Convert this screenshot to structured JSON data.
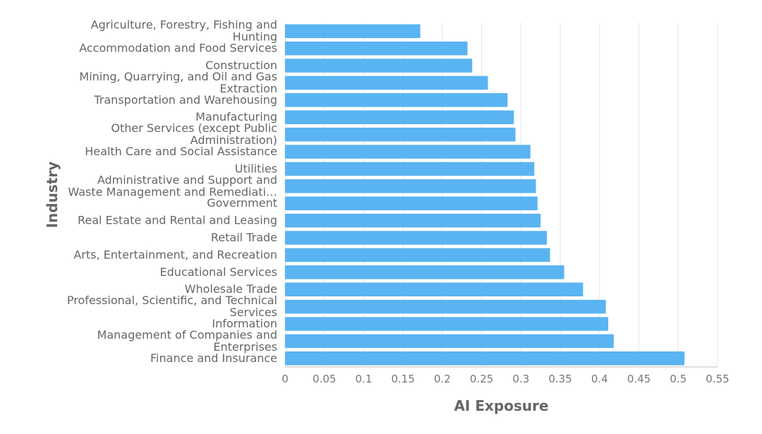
{
  "chart_data": {
    "type": "bar",
    "orientation": "horizontal",
    "xlabel": "AI Exposure",
    "ylabel": "Industry",
    "xlim": [
      0,
      0.55
    ],
    "xticks": [
      "0",
      "0.05",
      "0.1",
      "0.15",
      "0.2",
      "0.25",
      "0.3",
      "0.35",
      "0.4",
      "0.45",
      "0.5",
      "0.55"
    ],
    "grid": true,
    "bar_color": "#5ab4f2",
    "categories": [
      "Agriculture, Forestry, Fishing and Hunting",
      "Accommodation and Food Services",
      "Construction",
      "Mining, Quarrying, and Oil and Gas Extraction",
      "Transportation and Warehousing",
      "Manufacturing",
      "Other Services (except Public Administration)",
      "Health Care and Social Assistance",
      "Utilities",
      "Administrative and Support and Waste Management and Remediati…",
      "Government",
      "Real Estate and Rental and Leasing",
      "Retail Trade",
      "Arts, Entertainment, and Recreation",
      "Educational Services",
      "Wholesale Trade",
      "Professional, Scientific, and Technical Services",
      "Information",
      "Management of Companies and Enterprises",
      "Finance and Insurance"
    ],
    "category_lines": [
      [
        "Agriculture, Forestry, Fishing and",
        "Hunting"
      ],
      [
        "Accommodation and Food Services"
      ],
      [
        "Construction"
      ],
      [
        "Mining, Quarrying, and Oil and Gas",
        "Extraction"
      ],
      [
        "Transportation and Warehousing"
      ],
      [
        "Manufacturing"
      ],
      [
        "Other Services (except Public",
        "Administration)"
      ],
      [
        "Health Care and Social Assistance"
      ],
      [
        "Utilities"
      ],
      [
        "Administrative and Support and",
        "Waste Management and Remediati…"
      ],
      [
        "Government"
      ],
      [
        "Real Estate and Rental and Leasing"
      ],
      [
        "Retail Trade"
      ],
      [
        "Arts, Entertainment, and Recreation"
      ],
      [
        "Educational Services"
      ],
      [
        "Wholesale Trade"
      ],
      [
        "Professional, Scientific, and Technical",
        "Services"
      ],
      [
        "Information"
      ],
      [
        "Management of Companies and",
        "Enterprises"
      ],
      [
        "Finance and Insurance"
      ]
    ],
    "values": [
      0.172,
      0.232,
      0.238,
      0.258,
      0.283,
      0.291,
      0.293,
      0.312,
      0.317,
      0.319,
      0.321,
      0.325,
      0.333,
      0.337,
      0.355,
      0.379,
      0.408,
      0.411,
      0.418,
      0.508
    ]
  }
}
